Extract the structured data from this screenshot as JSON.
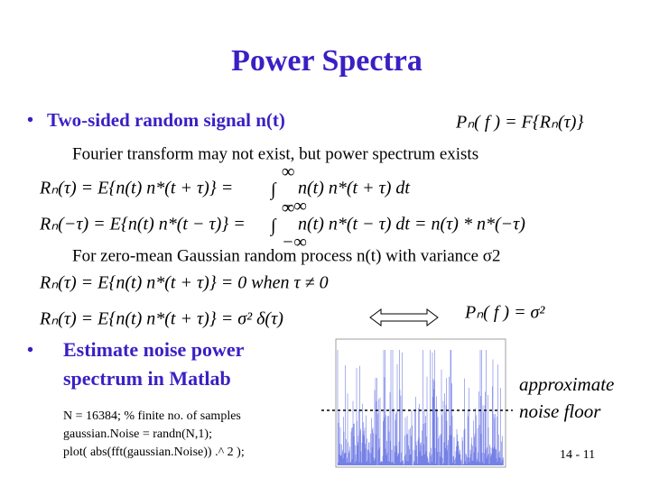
{
  "title": "Power Spectra",
  "bullet_1": {
    "text": "Two-sided random signal n(t)",
    "equation": "Pₙ( f ) = F{Rₙ(τ)}"
  },
  "note_1": "Fourier transform may not exist, but power spectrum exists",
  "equations_1": [
    {
      "left": "Rₙ(τ) = E{n(t) n*(t + τ)} =",
      "integral": "∫",
      "upper": "∞",
      "lower": "−∞",
      "right": "n(t) n*(t + τ) dt"
    },
    {
      "left": "Rₙ(−τ) = E{n(t) n*(t − τ)} =",
      "integral": "∫",
      "upper": "∞",
      "lower": "−∞",
      "right": "n(t) n*(t − τ) dt = n(τ) * n*(−τ)"
    }
  ],
  "note_2": "For zero-mean Gaussian random process n(t) with variance σ2",
  "equations_2": [
    "Rₙ(τ) = E{n(t) n*(t + τ)} = 0   when   τ ≠ 0",
    "Rₙ(τ) = E{n(t) n*(t + τ)} = σ² δ(τ)"
  ],
  "equation_psd": "Pₙ( f ) = σ²",
  "bullet_2": [
    "Estimate noise power",
    "spectrum in Matlab"
  ],
  "code": [
    "N = 16384;   % finite no. of samples",
    "gaussian.Noise = randn(N,1);",
    "plot( abs(fft(gaussian.Noise)) .^ 2 );"
  ],
  "annotation": [
    "approximate",
    "noise floor"
  ],
  "page_number": "14 - 11"
}
